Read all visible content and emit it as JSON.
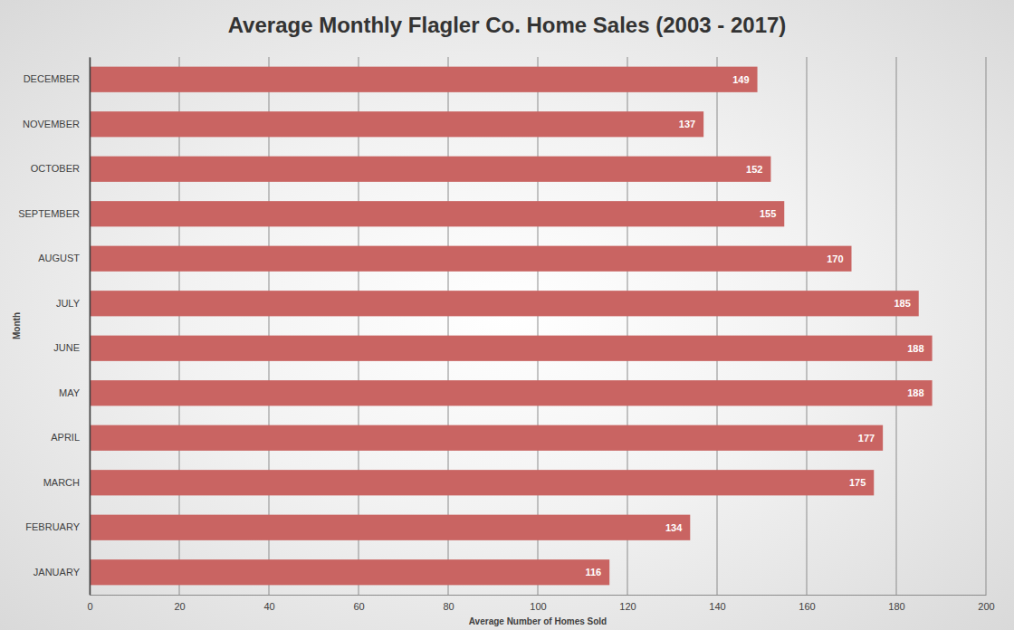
{
  "chart_data": {
    "type": "bar",
    "title": "Average Monthly Flagler Co. Home Sales (2003 - 2017)",
    "x_label": "Average Number of Homes Sold",
    "y_label": "Month",
    "categories": [
      "JANUARY",
      "FEBRUARY",
      "MARCH",
      "APRIL",
      "MAY",
      "JUNE",
      "JULY",
      "AUGUST",
      "SEPTEMBER",
      "OCTOBER",
      "NOVEMBER",
      "DECEMBER"
    ],
    "values": [
      116,
      134,
      175,
      177,
      188,
      188,
      185,
      170,
      155,
      152,
      137,
      149
    ],
    "color": "#c96462",
    "orientation": "horizontal",
    "data_labels": true,
    "grid": true,
    "xlim": [
      0,
      200
    ],
    "xticks": [
      0,
      20,
      40,
      60,
      80,
      100,
      120,
      140,
      160,
      180,
      200
    ]
  }
}
